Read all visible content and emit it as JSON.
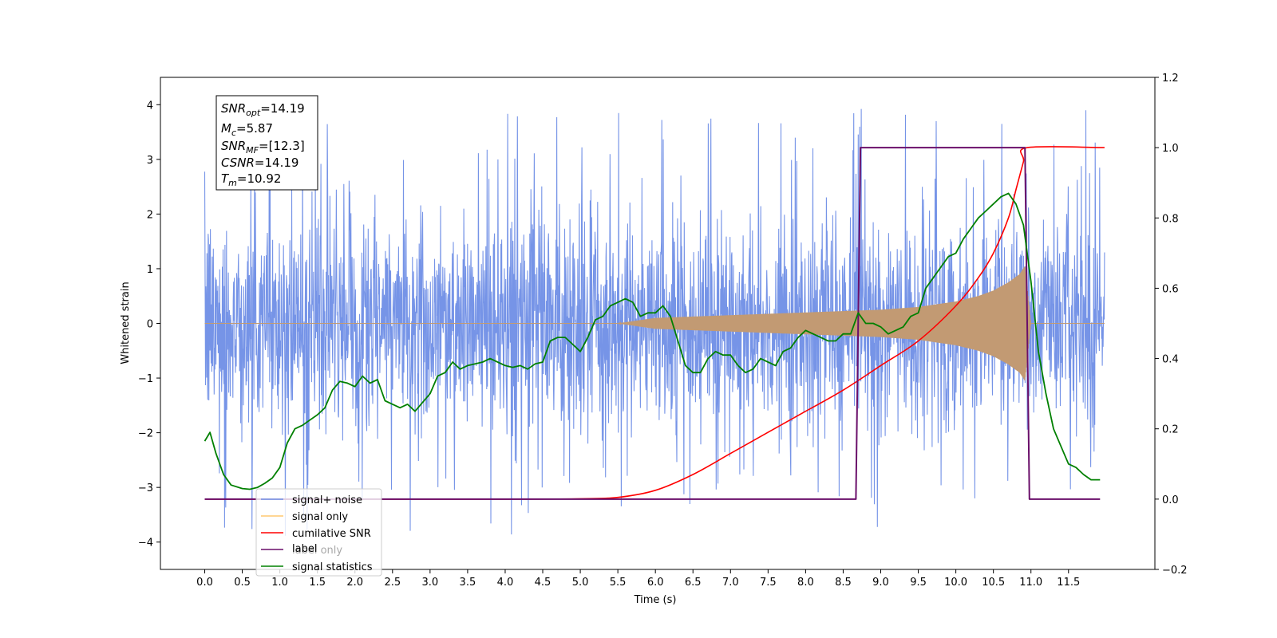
{
  "chart_data": {
    "type": "line",
    "xlabel": "Time (s)",
    "ylabel_left": "Whitened strain",
    "ylabel_right": "",
    "xlim": [
      -0.59,
      12.65
    ],
    "ylim_left": [
      -4.5,
      4.5
    ],
    "ylim_right": [
      -0.2,
      1.2
    ],
    "x_ticks": [
      "0.0",
      "0.5",
      "1.0",
      "1.5",
      "2.0",
      "2.5",
      "3.0",
      "3.5",
      "4.0",
      "4.5",
      "5.0",
      "5.5",
      "6.0",
      "6.5",
      "7.0",
      "7.5",
      "8.0",
      "8.5",
      "9.0",
      "9.5",
      "10.0",
      "10.5",
      "11.0",
      "11.5"
    ],
    "y_ticks_left": [
      "4",
      "3",
      "2",
      "1",
      "0",
      "−1",
      "−2",
      "−3",
      "−4"
    ],
    "y_ticks_right": [
      "1.2",
      "1.0",
      "0.8",
      "0.6",
      "0.4",
      "0.2",
      "0.0",
      "−0.2"
    ],
    "grid": false,
    "legend_position": "lower-left",
    "legend": [
      {
        "label": "signal+ noise",
        "color": "#6f8ee6"
      },
      {
        "label": "signal only",
        "color": "#ffc870"
      },
      {
        "label": "cumilative SNR",
        "color": "#ff0000"
      },
      {
        "label": "label",
        "color": "#6a0f6a"
      },
      {
        "label": "label only",
        "color": "#6a0f6a"
      },
      {
        "label": "signal statistics",
        "color": "#008000"
      }
    ],
    "info_box": {
      "line1": {
        "main": "SNR",
        "sub": "opt",
        "value": "=14.19"
      },
      "line2": {
        "main": "M",
        "sub": "c",
        "value": "=5.87"
      },
      "line3": {
        "main": "SNR",
        "sub": "MF",
        "value": "=[12.3]"
      },
      "line4": {
        "main": "CSNR",
        "sub": "",
        "value": "=14.19"
      },
      "line5": {
        "main": "T",
        "sub": "m",
        "value": "=10.92"
      }
    },
    "series": [
      {
        "name": "signal+ noise",
        "axis": "left",
        "x_range": [
          0.0,
          11.98
        ],
        "noise_band": [
          -2.6,
          2.7
        ],
        "peak_range": [
          -4.1,
          4.05
        ],
        "color": "#6f8ee6"
      },
      {
        "name": "signal only",
        "axis": "left",
        "x_range": [
          0.0,
          11.98
        ],
        "envelope": {
          "x": [
            0.0,
            5.5,
            6.0,
            7.0,
            8.0,
            9.0,
            9.5,
            10.0,
            10.3,
            10.5,
            10.7,
            10.85,
            10.92,
            11.0,
            11.98
          ],
          "amp": [
            0.0,
            0.0,
            0.1,
            0.15,
            0.2,
            0.25,
            0.3,
            0.4,
            0.5,
            0.6,
            0.75,
            0.9,
            1.05,
            0.0,
            0.0
          ]
        },
        "color": "#c29a73"
      },
      {
        "name": "cumilative SNR",
        "axis": "right",
        "x": [
          0.0,
          4.0,
          5.0,
          5.5,
          6.0,
          6.5,
          7.0,
          7.5,
          8.0,
          8.5,
          9.0,
          9.5,
          10.0,
          10.3,
          10.5,
          10.7,
          10.8,
          10.9,
          10.95,
          11.98
        ],
        "y": [
          0.0,
          0.0,
          0.001,
          0.005,
          0.025,
          0.07,
          0.13,
          0.19,
          0.25,
          0.31,
          0.38,
          0.45,
          0.55,
          0.63,
          0.7,
          0.8,
          0.88,
          0.96,
          1.0,
          1.0
        ],
        "color": "#ff0000"
      },
      {
        "name": "label",
        "axis": "right",
        "x": [
          0.0,
          8.67,
          8.73,
          10.92,
          10.98,
          11.92
        ],
        "y": [
          0.0,
          0.0,
          1.0,
          1.0,
          0.0,
          0.0
        ],
        "color": "#6a0f6a"
      },
      {
        "name": "signal statistics",
        "axis": "right",
        "x": [
          0.0,
          0.07,
          0.15,
          0.25,
          0.35,
          0.5,
          0.6,
          0.7,
          0.8,
          0.9,
          1.0,
          1.1,
          1.2,
          1.3,
          1.4,
          1.5,
          1.6,
          1.7,
          1.8,
          1.9,
          2.0,
          2.1,
          2.2,
          2.3,
          2.4,
          2.5,
          2.6,
          2.7,
          2.8,
          2.9,
          3.0,
          3.1,
          3.2,
          3.3,
          3.4,
          3.5,
          3.6,
          3.7,
          3.8,
          3.9,
          4.0,
          4.1,
          4.2,
          4.3,
          4.4,
          4.5,
          4.6,
          4.7,
          4.8,
          4.9,
          5.0,
          5.1,
          5.2,
          5.3,
          5.4,
          5.5,
          5.6,
          5.7,
          5.8,
          5.9,
          6.0,
          6.1,
          6.2,
          6.3,
          6.4,
          6.5,
          6.6,
          6.7,
          6.8,
          6.9,
          7.0,
          7.1,
          7.2,
          7.3,
          7.4,
          7.5,
          7.6,
          7.7,
          7.8,
          7.9,
          8.0,
          8.1,
          8.2,
          8.3,
          8.4,
          8.5,
          8.6,
          8.7,
          8.8,
          8.9,
          9.0,
          9.1,
          9.2,
          9.3,
          9.4,
          9.5,
          9.6,
          9.7,
          9.8,
          9.9,
          10.0,
          10.1,
          10.2,
          10.3,
          10.4,
          10.5,
          10.6,
          10.7,
          10.8,
          10.9,
          11.0,
          11.1,
          11.2,
          11.3,
          11.4,
          11.5,
          11.6,
          11.7,
          11.8,
          11.92
        ],
        "y": [
          0.165,
          0.19,
          0.13,
          0.07,
          0.04,
          0.03,
          0.028,
          0.033,
          0.045,
          0.06,
          0.09,
          0.16,
          0.2,
          0.21,
          0.225,
          0.24,
          0.26,
          0.31,
          0.335,
          0.33,
          0.32,
          0.35,
          0.33,
          0.34,
          0.28,
          0.27,
          0.26,
          0.27,
          0.25,
          0.275,
          0.3,
          0.35,
          0.36,
          0.39,
          0.37,
          0.38,
          0.385,
          0.39,
          0.4,
          0.39,
          0.38,
          0.375,
          0.38,
          0.37,
          0.385,
          0.39,
          0.45,
          0.46,
          0.46,
          0.44,
          0.42,
          0.46,
          0.51,
          0.52,
          0.55,
          0.56,
          0.57,
          0.56,
          0.52,
          0.53,
          0.53,
          0.55,
          0.52,
          0.45,
          0.38,
          0.36,
          0.36,
          0.4,
          0.42,
          0.41,
          0.41,
          0.38,
          0.36,
          0.37,
          0.4,
          0.39,
          0.38,
          0.42,
          0.43,
          0.46,
          0.48,
          0.47,
          0.46,
          0.45,
          0.45,
          0.47,
          0.47,
          0.53,
          0.5,
          0.5,
          0.49,
          0.47,
          0.48,
          0.49,
          0.52,
          0.53,
          0.6,
          0.63,
          0.66,
          0.69,
          0.7,
          0.74,
          0.77,
          0.8,
          0.82,
          0.84,
          0.86,
          0.87,
          0.84,
          0.78,
          0.62,
          0.42,
          0.3,
          0.2,
          0.15,
          0.1,
          0.09,
          0.07,
          0.055,
          0.055
        ],
        "color": "#008000"
      }
    ]
  }
}
